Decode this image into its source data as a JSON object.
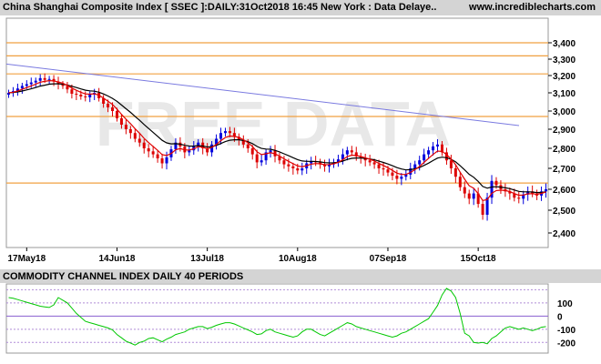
{
  "header": {
    "title": "China Shanghai Composite Index [ SSEC ]:DAILY:31Oct2018 16:45 New York : Data Delaye..",
    "site": "www.incrediblecharts.com"
  },
  "watermark": "FREE DATA",
  "chart_data": [
    {
      "type": "candlestick",
      "title": "China Shanghai Composite Index [ SSEC ]:DAILY:31Oct2018 16:45 New York : Data Delaye..",
      "ylim": [
        2350,
        3480
      ],
      "y_ticks": [
        "3,400",
        "3,300",
        "3,200",
        "3,100",
        "3,000",
        "2,900",
        "2,800",
        "2,700",
        "2,600",
        "2,500",
        "2,400"
      ],
      "y_tick_values": [
        3400,
        3300,
        3200,
        3100,
        3000,
        2900,
        2800,
        2700,
        2600,
        2500,
        2400
      ],
      "x_tick_labels": [
        "17May18",
        "14Jun18",
        "13Jul18",
        "10Aug18",
        "07Sep18",
        "15Oct18"
      ],
      "x_tick_index": [
        4,
        24,
        44,
        64,
        84,
        104
      ],
      "n_bars": 120,
      "horizontal_lines": [
        3400,
        3320,
        3210,
        2970,
        2630
      ],
      "close": [
        3100,
        3110,
        3125,
        3140,
        3150,
        3160,
        3170,
        3185,
        3175,
        3180,
        3165,
        3150,
        3140,
        3120,
        3095,
        3090,
        3080,
        3075,
        3090,
        3100,
        3070,
        3040,
        3020,
        3000,
        2960,
        2925,
        2900,
        2880,
        2850,
        2830,
        2800,
        2785,
        2770,
        2750,
        2725,
        2755,
        2795,
        2830,
        2810,
        2780,
        2790,
        2810,
        2830,
        2800,
        2780,
        2820,
        2850,
        2880,
        2890,
        2880,
        2860,
        2845,
        2820,
        2800,
        2770,
        2730,
        2740,
        2780,
        2790,
        2760,
        2740,
        2720,
        2710,
        2700,
        2690,
        2700,
        2725,
        2735,
        2730,
        2720,
        2710,
        2720,
        2730,
        2745,
        2770,
        2790,
        2780,
        2760,
        2750,
        2740,
        2730,
        2720,
        2700,
        2695,
        2680,
        2665,
        2650,
        2660,
        2670,
        2700,
        2720,
        2740,
        2770,
        2790,
        2810,
        2820,
        2780,
        2740,
        2700,
        2660,
        2610,
        2580,
        2555,
        2580,
        2530,
        2480,
        2560,
        2640,
        2620,
        2600,
        2590,
        2580,
        2560,
        2555,
        2575,
        2590,
        2580,
        2570,
        2590,
        2600
      ],
      "series": [
        {
          "name": "short moving average",
          "color": "#e00000"
        },
        {
          "name": "long moving average",
          "color": "#000000"
        },
        {
          "name": "long-term trend line",
          "color": "#7a7ae0",
          "values": [
            3270,
            2920
          ]
        }
      ]
    },
    {
      "type": "line",
      "title": "COMMODITY CHANNEL INDEX DAILY 40 PERIODS",
      "ylim": [
        -260,
        230
      ],
      "y_ticks": [
        "100",
        "0",
        "-100",
        "-200"
      ],
      "y_tick_values": [
        100,
        0,
        -100,
        -200
      ],
      "reference_lines": [
        200,
        100,
        0,
        -100,
        -200
      ],
      "values": [
        140,
        135,
        125,
        115,
        105,
        95,
        85,
        75,
        70,
        65,
        85,
        140,
        120,
        100,
        60,
        20,
        -10,
        -40,
        -50,
        -60,
        -70,
        -80,
        -90,
        -105,
        -140,
        -165,
        -190,
        -205,
        -220,
        -200,
        -190,
        -170,
        -165,
        -180,
        -195,
        -175,
        -160,
        -140,
        -130,
        -120,
        -100,
        -90,
        -80,
        -80,
        -95,
        -85,
        -70,
        -60,
        -50,
        -50,
        -60,
        -75,
        -90,
        -105,
        -120,
        -140,
        -135,
        -110,
        -100,
        -120,
        -130,
        -140,
        -150,
        -160,
        -150,
        -120,
        -100,
        -100,
        -120,
        -140,
        -150,
        -130,
        -110,
        -90,
        -70,
        -50,
        -60,
        -80,
        -90,
        -100,
        -110,
        -120,
        -130,
        -140,
        -150,
        -160,
        -150,
        -130,
        -120,
        -100,
        -80,
        -60,
        -40,
        -20,
        30,
        80,
        160,
        210,
        190,
        140,
        20,
        -130,
        -150,
        -200,
        -205,
        -200,
        -210,
        -170,
        -150,
        -120,
        -90,
        -80,
        -90,
        -100,
        -90,
        -100,
        -110,
        -100,
        -85,
        -80
      ],
      "color": "#00c800"
    }
  ]
}
